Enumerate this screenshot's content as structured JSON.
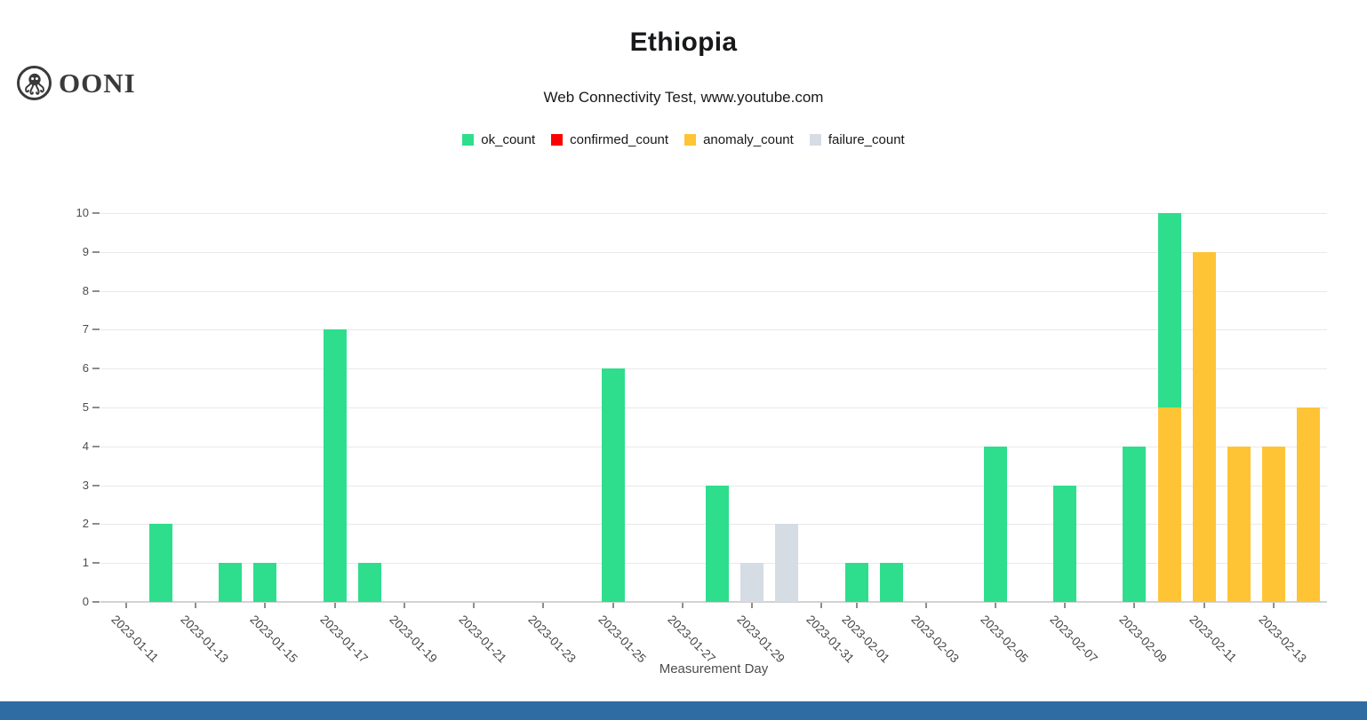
{
  "header": {
    "logo_text": "OONI",
    "title": "Ethiopia",
    "subtitle": "Web Connectivity Test, www.youtube.com"
  },
  "legend": [
    {
      "label": "ok_count",
      "color": "#2ede8d"
    },
    {
      "label": "confirmed_count",
      "color": "#ff0000"
    },
    {
      "label": "anomaly_count",
      "color": "#ffc435"
    },
    {
      "label": "failure_count",
      "color": "#d6dce4"
    }
  ],
  "footer": {
    "color": "#2f6ca4"
  },
  "chart_data": {
    "type": "bar",
    "stacked": true,
    "title": "Ethiopia",
    "subtitle": "Web Connectivity Test, www.youtube.com",
    "grid": "horizontal",
    "legend_position": "top",
    "series_names": [
      "ok_count",
      "confirmed_count",
      "anomaly_count",
      "failure_count"
    ],
    "y_axis": {
      "label": "",
      "min": 0,
      "max": 10,
      "ticks": [
        0,
        1,
        2,
        3,
        4,
        5,
        6,
        7,
        8,
        9,
        10
      ]
    },
    "x_axis": {
      "label": "Measurement Day",
      "tick_labels": [
        "2023-01-11",
        "2023-01-13",
        "2023-01-15",
        "2023-01-17",
        "2023-01-19",
        "2023-01-21",
        "2023-01-23",
        "2023-01-25",
        "2023-01-27",
        "2023-01-29",
        "2023-01-31",
        "2023-02-01",
        "2023-02-03",
        "2023-02-05",
        "2023-02-07",
        "2023-02-09",
        "2023-02-11",
        "2023-02-13"
      ],
      "full_range": [
        "2023-01-11",
        "2023-02-14"
      ]
    },
    "bars": [
      {
        "date": "2023-01-12",
        "segments": [
          {
            "series": "ok_count",
            "value": 2
          }
        ]
      },
      {
        "date": "2023-01-14",
        "segments": [
          {
            "series": "ok_count",
            "value": 1
          }
        ]
      },
      {
        "date": "2023-01-15",
        "segments": [
          {
            "series": "ok_count",
            "value": 1
          }
        ]
      },
      {
        "date": "2023-01-17",
        "segments": [
          {
            "series": "ok_count",
            "value": 7
          }
        ]
      },
      {
        "date": "2023-01-18",
        "segments": [
          {
            "series": "ok_count",
            "value": 1
          }
        ]
      },
      {
        "date": "2023-01-25",
        "segments": [
          {
            "series": "ok_count",
            "value": 6
          }
        ]
      },
      {
        "date": "2023-01-28",
        "segments": [
          {
            "series": "ok_count",
            "value": 3
          }
        ]
      },
      {
        "date": "2023-01-29",
        "segments": [
          {
            "series": "failure_count",
            "value": 1
          }
        ]
      },
      {
        "date": "2023-01-30",
        "segments": [
          {
            "series": "failure_count",
            "value": 2
          }
        ]
      },
      {
        "date": "2023-02-01",
        "segments": [
          {
            "series": "ok_count",
            "value": 1
          }
        ]
      },
      {
        "date": "2023-02-02",
        "segments": [
          {
            "series": "ok_count",
            "value": 1
          }
        ]
      },
      {
        "date": "2023-02-05",
        "segments": [
          {
            "series": "ok_count",
            "value": 4
          }
        ]
      },
      {
        "date": "2023-02-07",
        "segments": [
          {
            "series": "ok_count",
            "value": 3
          }
        ]
      },
      {
        "date": "2023-02-09",
        "segments": [
          {
            "series": "ok_count",
            "value": 4
          }
        ]
      },
      {
        "date": "2023-02-10",
        "segments": [
          {
            "series": "anomaly_count",
            "value": 5
          },
          {
            "series": "ok_count",
            "value": 5
          }
        ]
      },
      {
        "date": "2023-02-11",
        "segments": [
          {
            "series": "anomaly_count",
            "value": 9
          }
        ]
      },
      {
        "date": "2023-02-12",
        "segments": [
          {
            "series": "anomaly_count",
            "value": 4
          }
        ]
      },
      {
        "date": "2023-02-13",
        "segments": [
          {
            "series": "anomaly_count",
            "value": 4
          }
        ]
      },
      {
        "date": "2023-02-14",
        "segments": [
          {
            "series": "anomaly_count",
            "value": 5
          }
        ]
      }
    ]
  }
}
